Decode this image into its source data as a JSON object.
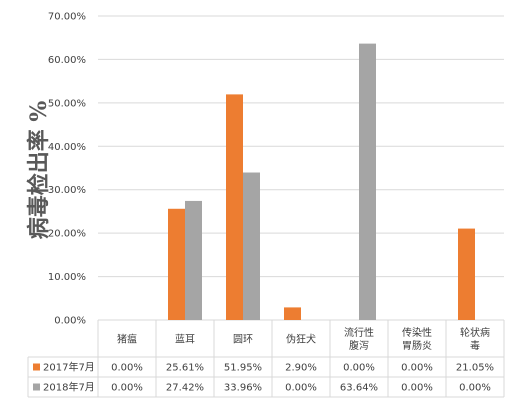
{
  "chart_data": {
    "type": "bar",
    "ylabel": "病毒检出率 %",
    "ylim": [
      0,
      70
    ],
    "yticks": [
      "0.00%",
      "10.00%",
      "20.00%",
      "30.00%",
      "40.00%",
      "50.00%",
      "60.00%",
      "70.00%"
    ],
    "ytick_values": [
      0,
      10,
      20,
      30,
      40,
      50,
      60,
      70
    ],
    "categories": [
      [
        "猪瘟"
      ],
      [
        "蓝耳"
      ],
      [
        "圆环"
      ],
      [
        "伪狂犬"
      ],
      [
        "流行性",
        "腹泻"
      ],
      [
        "传染性",
        "胃肠炎"
      ],
      [
        "轮状病",
        "毒"
      ]
    ],
    "series": [
      {
        "name": "2017年7月",
        "color": "#ED7D31",
        "values": [
          0,
          25.61,
          51.95,
          2.9,
          0,
          0,
          21.05
        ],
        "labels": [
          "0.00%",
          "25.61%",
          "51.95%",
          "2.90%",
          "0.00%",
          "0.00%",
          "21.05%"
        ]
      },
      {
        "name": "2018年7月",
        "color": "#A5A5A5",
        "values": [
          0,
          27.42,
          33.96,
          0,
          63.64,
          0,
          0
        ],
        "labels": [
          "0.00%",
          "27.42%",
          "33.96%",
          "0.00%",
          "63.64%",
          "0.00%",
          "0.00%"
        ]
      }
    ],
    "grid": true,
    "legend": "data-table",
    "axis_color": "#D9D9D9",
    "text_color": "#404040"
  }
}
